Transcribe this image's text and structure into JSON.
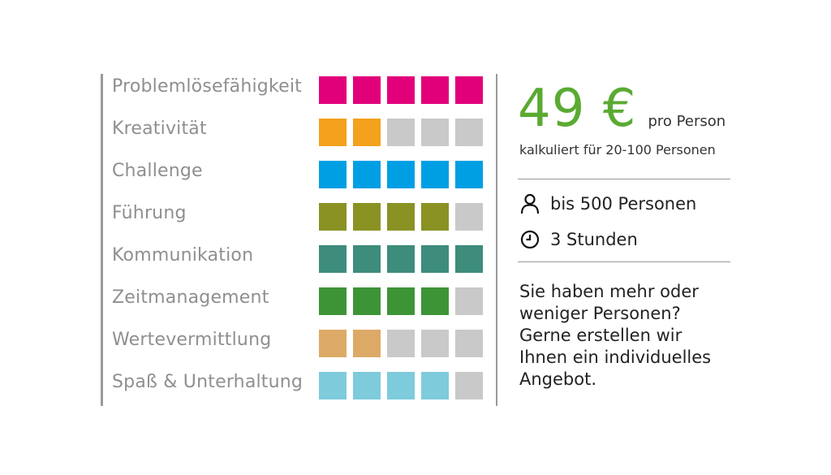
{
  "colors": {
    "inactive": "#c9c9c9",
    "accent_green": "#5aaa32"
  },
  "criteria": [
    {
      "label": "Problemlösefähigkeit",
      "rating": 5,
      "max": 5,
      "color": "#e2007a"
    },
    {
      "label": "Kreativität",
      "rating": 2,
      "max": 5,
      "color": "#f4a11d"
    },
    {
      "label": "Challenge",
      "rating": 5,
      "max": 5,
      "color": "#009fe3"
    },
    {
      "label": "Führung",
      "rating": 4,
      "max": 5,
      "color": "#8a9223"
    },
    {
      "label": "Kommunikation",
      "rating": 5,
      "max": 5,
      "color": "#3e8c7c"
    },
    {
      "label": "Zeitmanagement",
      "rating": 4,
      "max": 5,
      "color": "#3d9437"
    },
    {
      "label": "Wertevermittlung",
      "rating": 2,
      "max": 5,
      "color": "#dcaa66"
    },
    {
      "label": "Spaß & Unterhaltung",
      "rating": 4,
      "max": 5,
      "color": "#7ecbdb"
    }
  ],
  "price": {
    "amount": "49 €",
    "unit": "pro Person",
    "calculation": "kalkuliert für 20-100 Personen"
  },
  "details": {
    "persons": {
      "icon": "person-icon",
      "text": "bis 500 Personen"
    },
    "duration": {
      "icon": "clock-icon",
      "text": "3 Stunden"
    }
  },
  "note": {
    "lines": [
      "Sie haben mehr oder",
      "weniger Personen?",
      "Gerne erstellen wir",
      "Ihnen ein individuelles",
      "Angebot."
    ]
  }
}
